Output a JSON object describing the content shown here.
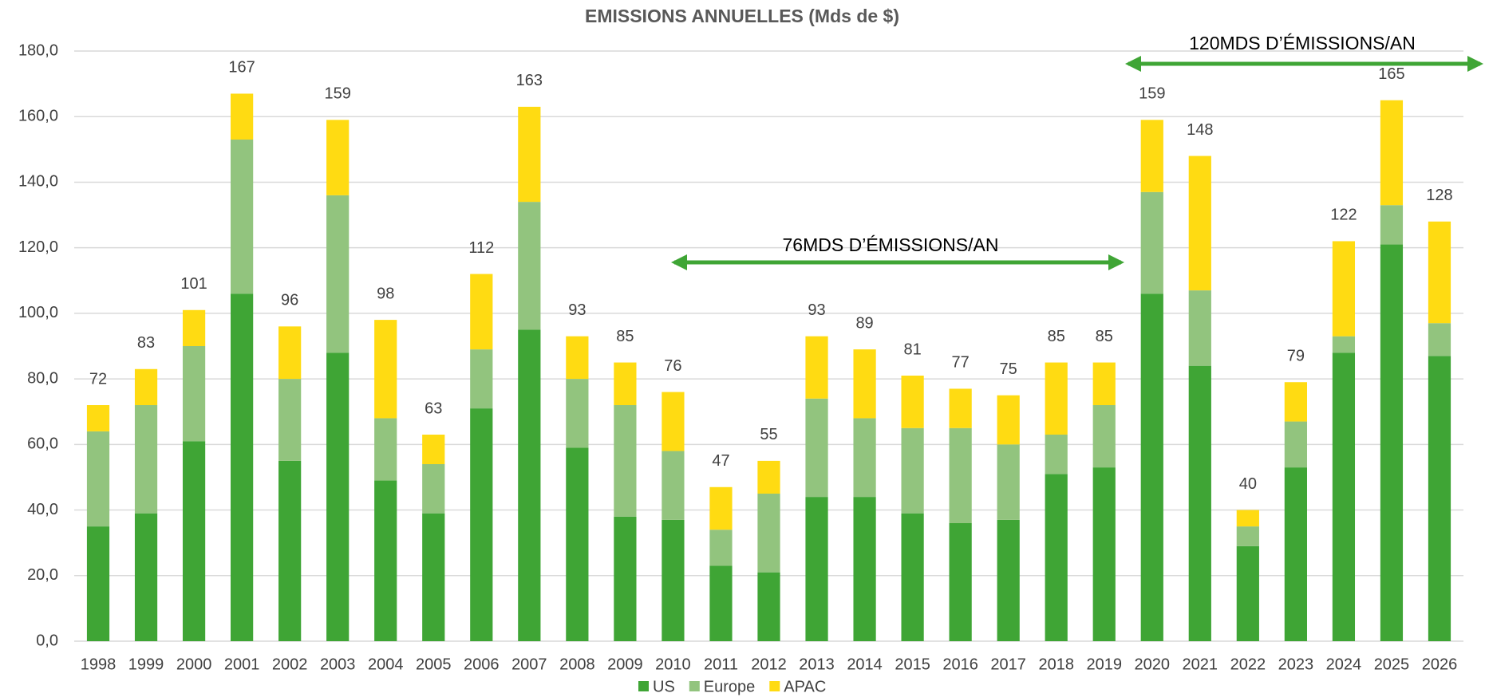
{
  "chart_data": {
    "type": "stacked_bar",
    "title": "EMISSIONS ANNUELLES (Mds de $)",
    "categories": [
      "1998",
      "1999",
      "2000",
      "2001",
      "2002",
      "2003",
      "2004",
      "2005",
      "2006",
      "2007",
      "2008",
      "2009",
      "2010",
      "2011",
      "2012",
      "2013",
      "2014",
      "2015",
      "2016",
      "2017",
      "2018",
      "2019",
      "2020",
      "2021",
      "2022",
      "2023",
      "2024",
      "2025",
      "2026"
    ],
    "series": [
      {
        "name": "US",
        "color": "#3fa535",
        "values": [
          35,
          39,
          61,
          106,
          55,
          88,
          49,
          39,
          71,
          95,
          59,
          38,
          37,
          23,
          21,
          44,
          44,
          39,
          36,
          37,
          51,
          53,
          106,
          84,
          29,
          53,
          88,
          121,
          87
        ]
      },
      {
        "name": "Europe",
        "color": "#92c47e",
        "values": [
          29,
          33,
          29,
          47,
          25,
          48,
          19,
          15,
          18,
          39,
          21,
          34,
          21,
          11,
          24,
          30,
          24,
          26,
          29,
          23,
          12,
          19,
          31,
          23,
          6,
          14,
          5,
          12,
          10
        ]
      },
      {
        "name": "APAC",
        "color": "#ffdb12",
        "values": [
          8,
          11,
          11,
          14,
          16,
          23,
          30,
          9,
          23,
          29,
          13,
          13,
          18,
          13,
          10,
          19,
          21,
          16,
          12,
          15,
          22,
          13,
          22,
          41,
          5,
          12,
          29,
          32,
          31
        ]
      }
    ],
    "totals": [
      72,
      83,
      101,
      167,
      96,
      159,
      98,
      63,
      112,
      163,
      93,
      85,
      76,
      47,
      55,
      93,
      89,
      81,
      77,
      75,
      85,
      85,
      159,
      148,
      40,
      79,
      122,
      165,
      128
    ],
    "ylim": [
      0,
      180
    ],
    "yticks": [
      {
        "value": 0,
        "label": "0,0"
      },
      {
        "value": 20,
        "label": "20,0"
      },
      {
        "value": 40,
        "label": "40,0"
      },
      {
        "value": 60,
        "label": "60,0"
      },
      {
        "value": 80,
        "label": "80,0"
      },
      {
        "value": 100,
        "label": "100,0"
      },
      {
        "value": 120,
        "label": "120,0"
      },
      {
        "value": 140,
        "label": "140,0"
      },
      {
        "value": 160,
        "label": "160,0"
      },
      {
        "value": 180,
        "label": "180,0"
      }
    ],
    "grid": true,
    "legend": "bottom",
    "annotations": [
      "76MDS D’ÉMISSIONS/AN",
      "120MDS D’ÉMISSIONS/AN"
    ]
  }
}
